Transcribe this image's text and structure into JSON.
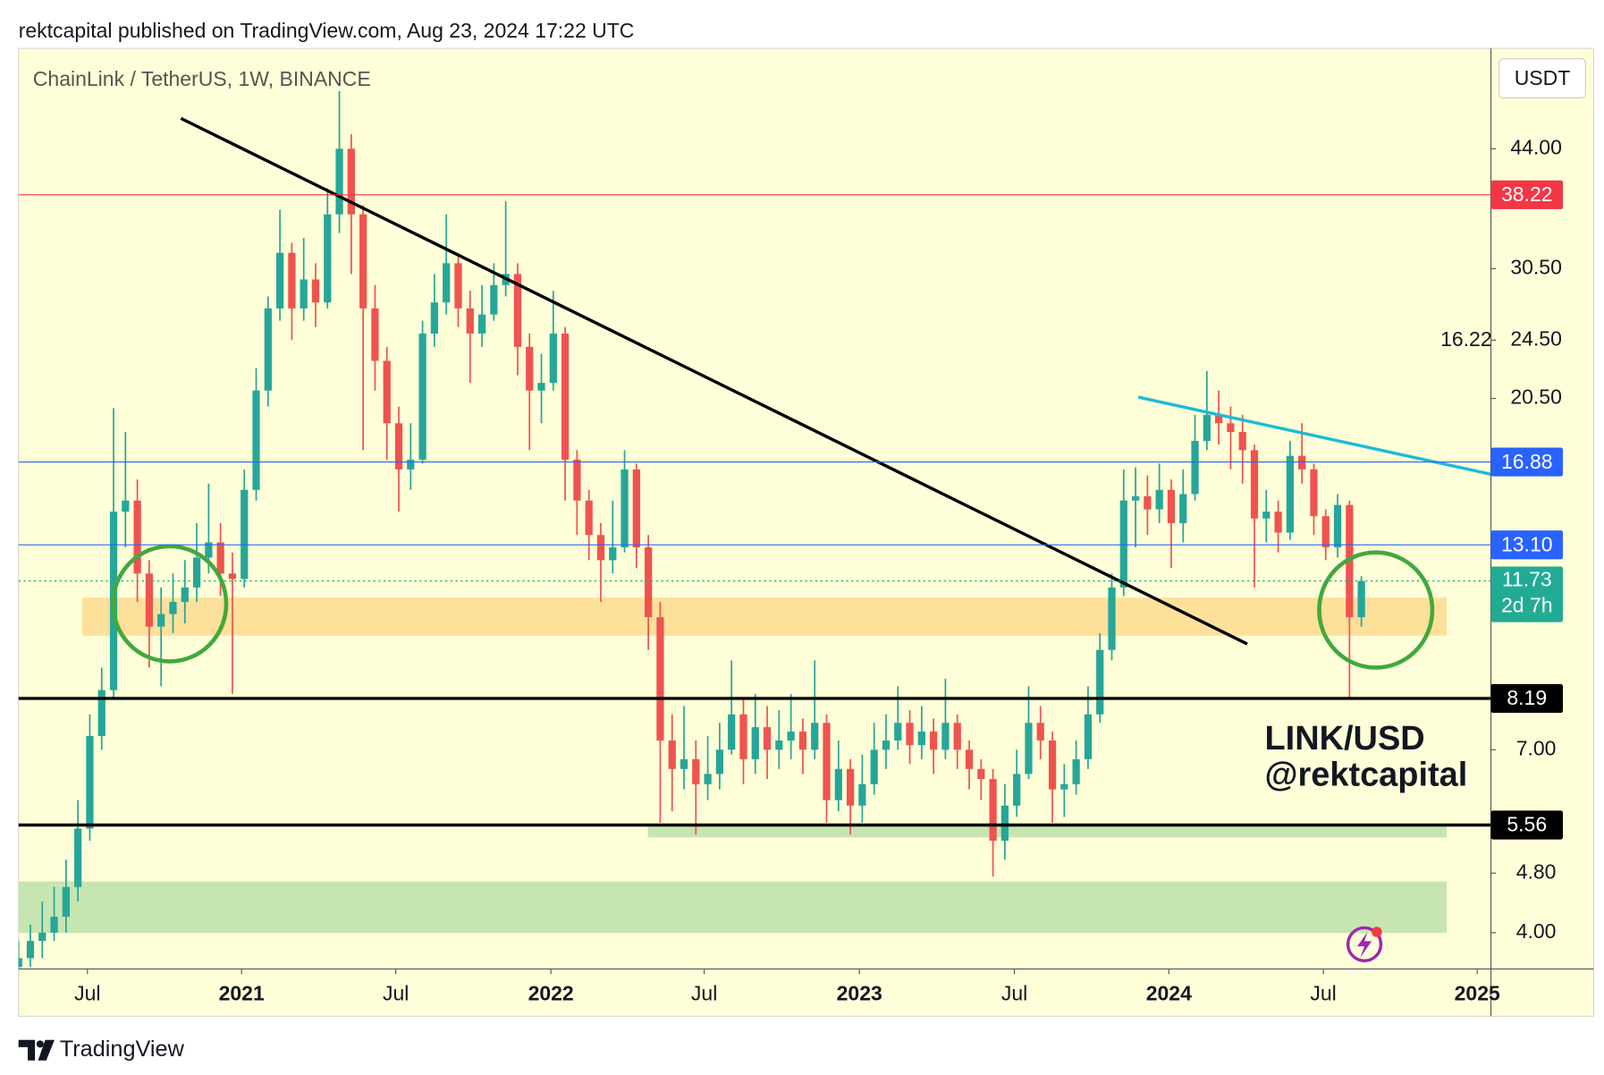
{
  "header": "rektcapital published on TradingView.com, Aug 23, 2024 17:22 UTC",
  "footer": "TradingView",
  "chart_data": {
    "type": "candlestick",
    "title": "ChainLink / TetherUS, 1W, BINANCE",
    "currency": "USDT",
    "log_scale": true,
    "grid": false,
    "up_color": "#26a69a",
    "down_color": "#ef5350",
    "xlim": [
      0,
      123.9
    ],
    "ylim": [
      3.58,
      59.8
    ],
    "xticks": [
      {
        "value": 5.8,
        "label": "Jul"
      },
      {
        "value": 18.77,
        "label": "2021"
      },
      {
        "value": 31.75,
        "label": "Jul"
      },
      {
        "value": 44.8,
        "label": "2022"
      },
      {
        "value": 57.7,
        "label": "Jul"
      },
      {
        "value": 70.76,
        "label": "2023"
      },
      {
        "value": 83.8,
        "label": "Jul"
      },
      {
        "value": 96.8,
        "label": "2024"
      },
      {
        "value": 109.8,
        "label": "Jul"
      },
      {
        "value": 122.75,
        "label": "2025"
      }
    ],
    "yticks": [
      {
        "value": 44,
        "label": "44.00"
      },
      {
        "value": 30.5,
        "label": "30.50"
      },
      {
        "value": 24.5,
        "label": "24.50"
      },
      {
        "value": 20.5,
        "label": "20.50"
      },
      {
        "value": 7,
        "label": "7.00"
      },
      {
        "value": 4.8,
        "label": "4.80"
      },
      {
        "value": 4,
        "label": "4.00"
      }
    ],
    "open": [
      3.6,
      3.7,
      3.9,
      4.0,
      4.2,
      4.6,
      5.5,
      7.3,
      8.4,
      14.5,
      15.0,
      12.0,
      10.2,
      10.6,
      11.0,
      11.5,
      12.6,
      13.2,
      12.0,
      11.8,
      15.5,
      21.0,
      27.0,
      32.0,
      27.0,
      29.5,
      27.5,
      36.0,
      44.0,
      36.0,
      27.0,
      23.0,
      19.0,
      16.5,
      17.0,
      25.0,
      27.5,
      31.0,
      27.0,
      25.0,
      26.5,
      29.0,
      30.0,
      24.0,
      21.0,
      21.5,
      25.0,
      17.0,
      15.0,
      13.5,
      12.5,
      13.0,
      16.5,
      13.0,
      10.5,
      7.2,
      6.6,
      6.8,
      6.3,
      6.5,
      7.0,
      7.8,
      6.8,
      7.5,
      7.0,
      7.2,
      7.4,
      7.0,
      7.6,
      6.0,
      6.6,
      5.9,
      6.3,
      7.0,
      7.2,
      7.6,
      7.1,
      7.4,
      7.0,
      7.6,
      7.0,
      6.6,
      6.4,
      5.3,
      5.9,
      6.5,
      7.6,
      7.2,
      6.2,
      6.3,
      6.8,
      7.8,
      9.5,
      11.5,
      15.0,
      15.2,
      14.6,
      15.5,
      14.0,
      15.3,
      18.0,
      19.5,
      19.0,
      18.5,
      17.5,
      14.2,
      14.5,
      13.6,
      17.2,
      16.5,
      14.3,
      13.0,
      14.8,
      10.5
    ],
    "high": [
      3.9,
      4.1,
      4.4,
      4.6,
      5.0,
      6.0,
      7.8,
      9.0,
      19.9,
      18.5,
      16.0,
      12.5,
      11.5,
      12.0,
      12.5,
      14.0,
      15.8,
      14.0,
      12.8,
      16.5,
      22.5,
      28.0,
      36.5,
      33.0,
      33.5,
      31.0,
      39.0,
      52.5,
      46.0,
      37.0,
      29.0,
      24.0,
      20.0,
      19.0,
      26.0,
      30.0,
      36.0,
      32.0,
      28.5,
      29.0,
      31.0,
      37.5,
      31.0,
      25.0,
      23.5,
      28.5,
      25.5,
      17.5,
      15.5,
      14.0,
      15.0,
      17.5,
      16.8,
      13.5,
      11.0,
      7.8,
      8.0,
      7.2,
      7.3,
      7.6,
      9.2,
      8.2,
      8.3,
      8.0,
      7.9,
      8.3,
      7.7,
      9.2,
      7.8,
      7.2,
      6.8,
      6.9,
      7.6,
      7.8,
      8.5,
      7.9,
      8.0,
      7.7,
      8.7,
      7.8,
      7.2,
      6.8,
      6.6,
      6.3,
      7.0,
      8.5,
      8.0,
      7.4,
      6.7,
      7.2,
      8.5,
      10.0,
      12.0,
      16.5,
      16.6,
      16.2,
      16.8,
      16.0,
      16.5,
      19.5,
      22.3,
      21.0,
      20.0,
      19.5,
      17.8,
      15.5,
      15.0,
      18.0,
      19.0,
      16.8,
      14.6,
      15.3,
      15.0,
      11.9
    ],
    "low": [
      3.5,
      3.6,
      3.7,
      3.9,
      4.0,
      4.4,
      5.3,
      7.0,
      8.2,
      13.0,
      11.0,
      9.0,
      8.5,
      10.0,
      10.3,
      11.0,
      12.0,
      11.2,
      8.3,
      11.5,
      15.0,
      20.0,
      26.0,
      24.5,
      26.0,
      25.5,
      27.0,
      34.0,
      30.0,
      17.5,
      21.0,
      17.0,
      14.5,
      15.5,
      16.8,
      24.0,
      26.5,
      25.5,
      21.5,
      24.0,
      26.0,
      28.0,
      22.0,
      17.5,
      19.0,
      21.0,
      15.0,
      13.5,
      12.5,
      11.0,
      12.0,
      12.8,
      12.2,
      9.5,
      5.6,
      5.8,
      6.2,
      5.4,
      6.0,
      6.2,
      6.9,
      6.3,
      6.5,
      6.4,
      6.6,
      6.8,
      6.5,
      6.8,
      5.6,
      5.8,
      5.4,
      5.6,
      6.1,
      6.6,
      7.0,
      6.7,
      6.8,
      6.5,
      6.8,
      6.6,
      6.2,
      6.0,
      4.75,
      5.0,
      5.7,
      6.4,
      6.8,
      5.6,
      5.7,
      6.1,
      6.6,
      7.6,
      9.2,
      11.2,
      13.0,
      13.5,
      14.0,
      12.2,
      13.2,
      15.0,
      17.5,
      17.8,
      16.5,
      15.8,
      11.5,
      13.2,
      12.8,
      13.3,
      15.8,
      13.5,
      12.5,
      12.6,
      8.2,
      10.2
    ],
    "close": [
      3.7,
      3.9,
      4.0,
      4.2,
      4.6,
      5.5,
      7.3,
      8.4,
      14.5,
      15.0,
      12.0,
      10.2,
      10.6,
      11.0,
      11.5,
      12.6,
      13.2,
      12.0,
      11.8,
      15.5,
      21.0,
      27.0,
      32.0,
      27.0,
      29.5,
      27.5,
      36.0,
      44.0,
      36.0,
      27.0,
      23.0,
      19.0,
      16.5,
      17.0,
      25.0,
      27.5,
      31.0,
      27.0,
      25.0,
      26.5,
      29.0,
      30.0,
      24.0,
      21.0,
      21.5,
      25.0,
      17.0,
      15.0,
      13.5,
      12.5,
      13.0,
      16.5,
      13.0,
      10.5,
      7.2,
      6.6,
      6.8,
      6.3,
      6.5,
      7.0,
      7.8,
      6.8,
      7.5,
      7.0,
      7.2,
      7.4,
      7.0,
      7.6,
      6.0,
      6.6,
      5.9,
      6.3,
      7.0,
      7.2,
      7.6,
      7.1,
      7.4,
      7.0,
      7.6,
      7.0,
      6.6,
      6.4,
      5.3,
      5.9,
      6.5,
      7.6,
      7.2,
      6.2,
      6.3,
      6.8,
      7.8,
      9.5,
      11.5,
      15.0,
      15.2,
      14.6,
      15.5,
      14.0,
      15.3,
      18.0,
      19.5,
      19.0,
      18.5,
      17.5,
      14.2,
      14.5,
      13.6,
      17.2,
      16.5,
      14.3,
      13.0,
      14.8,
      10.5,
      11.73
    ],
    "levels": [
      {
        "value": 38.22,
        "color": "#f23645",
        "width": 1
      },
      {
        "value": 16.88,
        "color": "#2962ff",
        "width": 1
      },
      {
        "value": 13.1,
        "label": "13.10",
        "color": "#2962ff",
        "width": 1
      },
      {
        "value": 8.19,
        "color": "#000000",
        "width": 3
      },
      {
        "value": 5.56,
        "color": "#000000",
        "width": 3
      }
    ],
    "last_price": {
      "value": 11.73,
      "countdown": "2d 7h",
      "color": "#22ab94"
    },
    "annotations": [
      "16.22",
      "LINK/USD",
      "@rektcapital"
    ]
  }
}
